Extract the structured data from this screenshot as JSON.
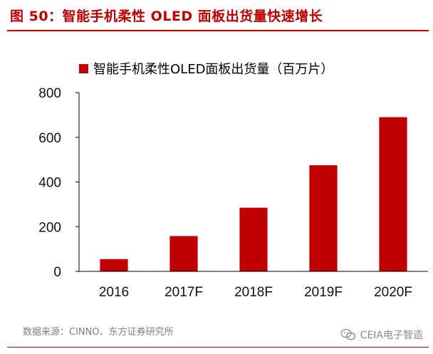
{
  "figure": {
    "title": "图 50：智能手机柔性 OLED 面板出货量快速增长",
    "source": "数据来源：CINNO、东方证券研究所",
    "watermark": "CEIA电子智造"
  },
  "colors": {
    "accent": "#c00000",
    "bar": "#c00000",
    "axis": "#000000",
    "source_text": "#7f7f7f"
  },
  "chart_data": {
    "type": "bar",
    "categories": [
      "2016",
      "2017F",
      "2018F",
      "2019F",
      "2020F"
    ],
    "series": [
      {
        "name": "智能手机柔性OLED面板出货量（百万片）",
        "values": [
          55,
          158,
          285,
          475,
          690
        ]
      }
    ],
    "ylim": [
      0,
      800
    ],
    "yticks": [
      "0",
      "200",
      "400",
      "600",
      "800"
    ],
    "grid": false,
    "legend": "top-left"
  }
}
